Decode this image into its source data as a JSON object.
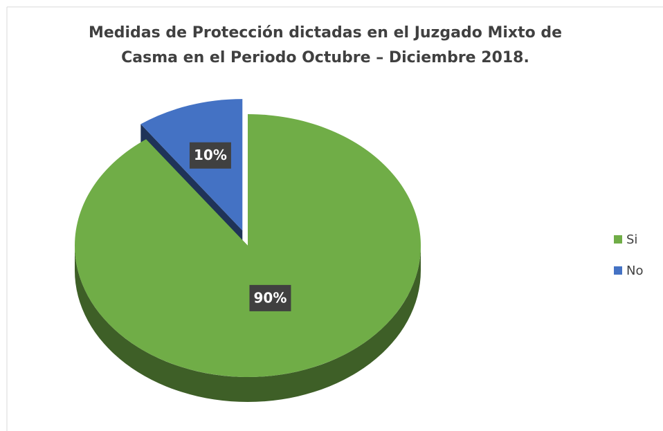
{
  "chart_data": {
    "type": "pie",
    "title": "Medidas de Protección dictadas en el Juzgado Mixto de Casma en el Periodo Octubre – Diciembre 2018.",
    "categories": [
      "Si",
      "No"
    ],
    "values": [
      90,
      10
    ],
    "value_labels": [
      "90%",
      "10%"
    ],
    "colors": [
      "#70ad47",
      "#4472c4"
    ],
    "legend": "right"
  }
}
